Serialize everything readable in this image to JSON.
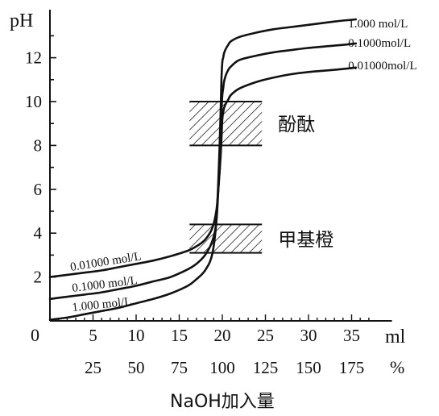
{
  "chart_data": {
    "type": "line",
    "ylabel": "pH",
    "xlabel": "NaOH加入量",
    "x_unit": "ml",
    "pct_unit": "%",
    "origin_label": "0",
    "xlim": [
      0,
      38
    ],
    "ylim": [
      0,
      14
    ],
    "x_ticks": [
      5,
      10,
      15,
      20,
      25,
      30,
      35
    ],
    "y_ticks": [
      2,
      4,
      6,
      8,
      10,
      12
    ],
    "pct_ticks": [
      {
        "x": 5,
        "label": "25"
      },
      {
        "x": 10,
        "label": "50"
      },
      {
        "x": 15,
        "label": "75"
      },
      {
        "x": 20,
        "label": "100"
      },
      {
        "x": 25,
        "label": "125"
      },
      {
        "x": 30,
        "label": "150"
      },
      {
        "x": 35,
        "label": "175"
      }
    ],
    "series": [
      {
        "name": "1.000 mol/L",
        "x": [
          0,
          2,
          4,
          6,
          8,
          10,
          12,
          14,
          16,
          17,
          18,
          18.8,
          19.3,
          19.6,
          19.8,
          19.9,
          20.0,
          20.1,
          20.2,
          20.4,
          20.7,
          21,
          22,
          24,
          26,
          28,
          30,
          33,
          35.5
        ],
        "y": [
          0.05,
          0.15,
          0.3,
          0.45,
          0.6,
          0.8,
          1.0,
          1.25,
          1.6,
          1.9,
          2.3,
          3.0,
          4.5,
          7.0,
          9.5,
          11.0,
          11.8,
          12.0,
          12.2,
          12.4,
          12.6,
          12.75,
          12.95,
          13.15,
          13.3,
          13.4,
          13.5,
          13.65,
          13.75
        ]
      },
      {
        "name": "0.1000mol/L",
        "x": [
          0,
          2,
          4,
          6,
          8,
          10,
          12,
          14,
          16,
          17,
          18,
          18.8,
          19.3,
          19.6,
          19.8,
          19.9,
          20.0,
          20.1,
          20.2,
          20.4,
          20.7,
          21,
          22,
          24,
          26,
          28,
          30,
          33,
          35.5
        ],
        "y": [
          1.0,
          1.1,
          1.2,
          1.3,
          1.45,
          1.6,
          1.8,
          2.0,
          2.35,
          2.6,
          3.0,
          3.6,
          4.5,
          6.5,
          8.5,
          9.5,
          10.3,
          10.6,
          10.9,
          11.2,
          11.45,
          11.6,
          11.9,
          12.1,
          12.25,
          12.35,
          12.45,
          12.55,
          12.65
        ]
      },
      {
        "name": "0.01000mol/L",
        "x": [
          0,
          2,
          4,
          6,
          8,
          10,
          12,
          14,
          16,
          17,
          18,
          18.8,
          19.3,
          19.6,
          19.8,
          19.9,
          20.0,
          20.1,
          20.2,
          20.4,
          20.7,
          21,
          22,
          24,
          26,
          28,
          30,
          33,
          35.5
        ],
        "y": [
          2.0,
          2.1,
          2.2,
          2.3,
          2.45,
          2.6,
          2.75,
          2.95,
          3.2,
          3.4,
          3.7,
          4.2,
          5.0,
          6.3,
          7.5,
          8.3,
          9.2,
          9.5,
          9.7,
          9.9,
          10.1,
          10.3,
          10.6,
          10.9,
          11.1,
          11.25,
          11.35,
          11.45,
          11.55
        ]
      }
    ],
    "right_labels": [
      "1.000 mol/L",
      "0.1000mol/L",
      "0.01000mol/L"
    ],
    "left_labels": [
      "0.01000 mol/L",
      "0.1000 mol/L",
      "1.000 mol/L"
    ],
    "indicators": [
      {
        "name": "酚酞",
        "x_range": [
          16.2,
          24.6
        ],
        "y_range": [
          8.0,
          10.0
        ]
      },
      {
        "name": "甲基橙",
        "x_range": [
          16.2,
          24.6
        ],
        "y_range": [
          3.1,
          4.4
        ]
      }
    ]
  }
}
